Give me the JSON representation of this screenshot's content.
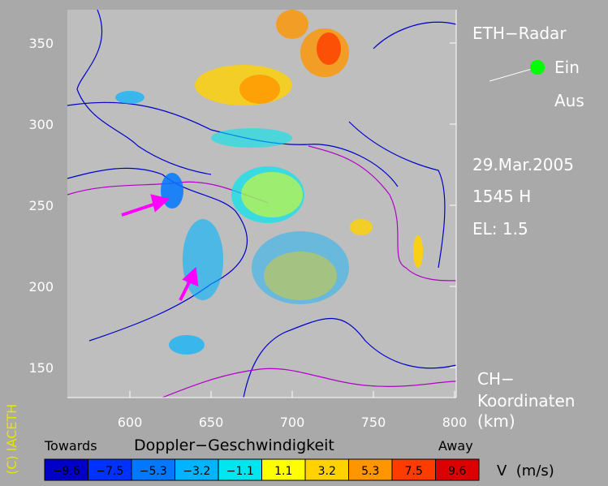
{
  "title": "ETH−Radar",
  "switch": {
    "on": "Ein",
    "off": "Aus"
  },
  "date": "29.Mar.2005",
  "time": "1545 H",
  "elevation": "EL: 1.5",
  "coordinates": {
    "line1": "CH−",
    "line2": "Koordinaten",
    "unit": "(km)"
  },
  "x_axis": {
    "ticks": [
      600,
      650,
      700,
      750,
      800
    ]
  },
  "y_axis": {
    "ticks": [
      350,
      300,
      250,
      200,
      150
    ]
  },
  "legend": {
    "left": "Towards",
    "title": "Doppler−Geschwindigkeit",
    "right": "Away",
    "unit": "V  (m/s)",
    "bins": [
      {
        "label": "−9.6",
        "color": "#0000c8"
      },
      {
        "label": "−7.5",
        "color": "#0032ff"
      },
      {
        "label": "−5.3",
        "color": "#0078ff"
      },
      {
        "label": "−3.2",
        "color": "#00b4ff"
      },
      {
        "label": "−1.1",
        "color": "#00e6f0"
      },
      {
        "label": "1.1",
        "color": "#ffff00"
      },
      {
        "label": "3.2",
        "color": "#ffd200"
      },
      {
        "label": "5.3",
        "color": "#ff9600"
      },
      {
        "label": "7.5",
        "color": "#ff3c00"
      },
      {
        "label": "9.6",
        "color": "#dc0000"
      }
    ]
  },
  "copyright": "(C) IACETH"
}
